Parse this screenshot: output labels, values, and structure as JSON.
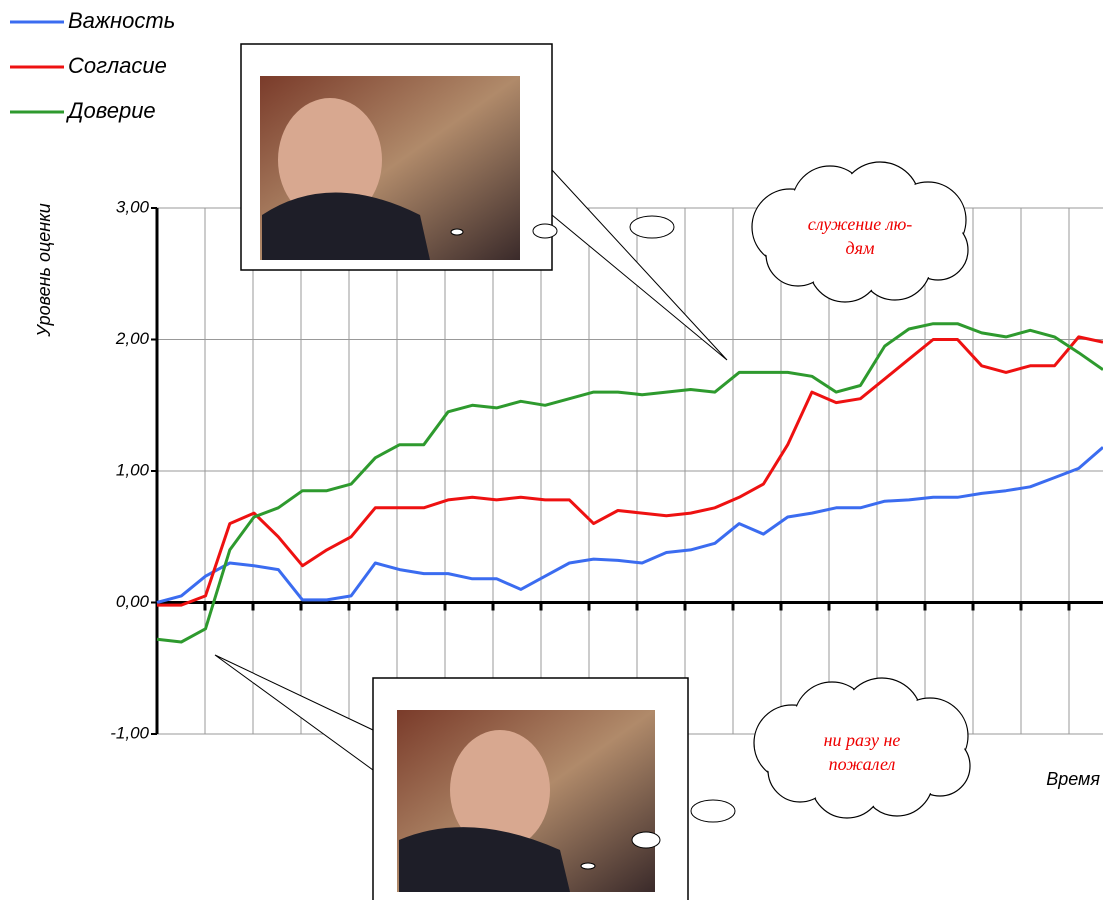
{
  "chart_data": {
    "type": "line",
    "ylabel": "Уровень оценки",
    "xlabel": "Время",
    "ylim": [
      -1,
      3
    ],
    "yticks": [
      {
        "value": -1,
        "label": "-1,00"
      },
      {
        "value": 0,
        "label": "0,00"
      },
      {
        "value": 1,
        "label": "1,00"
      },
      {
        "value": 2,
        "label": "2,00"
      },
      {
        "value": 3,
        "label": "3,00"
      }
    ],
    "grid": true,
    "legend": "top-left",
    "categories": [
      null,
      null,
      null,
      null,
      null,
      null,
      null,
      null,
      null,
      null,
      null,
      null,
      null,
      null,
      null,
      null,
      null,
      null,
      null,
      null,
      null,
      null,
      null,
      null,
      null,
      null,
      null,
      null,
      null,
      null,
      null,
      null,
      null,
      null,
      null,
      null,
      null,
      null,
      null,
      null
    ],
    "series": [
      {
        "name": "Важность",
        "color": "#3b6cf0",
        "values": [
          0.0,
          0.05,
          0.2,
          0.3,
          0.28,
          0.25,
          0.02,
          0.02,
          0.05,
          0.3,
          0.25,
          0.22,
          0.22,
          0.18,
          0.18,
          0.1,
          0.2,
          0.3,
          0.33,
          0.32,
          0.3,
          0.38,
          0.4,
          0.45,
          0.6,
          0.52,
          0.65,
          0.68,
          0.72,
          0.72,
          0.77,
          0.78,
          0.8,
          0.8,
          0.83,
          0.85,
          0.88,
          0.95,
          1.02,
          1.18
        ]
      },
      {
        "name": "Согласие",
        "color": "#ee1111",
        "values": [
          -0.02,
          -0.02,
          0.05,
          0.6,
          0.68,
          0.5,
          0.28,
          0.4,
          0.5,
          0.72,
          0.72,
          0.72,
          0.78,
          0.8,
          0.78,
          0.8,
          0.78,
          0.78,
          0.6,
          0.7,
          0.68,
          0.66,
          0.68,
          0.72,
          0.8,
          0.9,
          1.2,
          1.6,
          1.52,
          1.55,
          1.7,
          1.85,
          2.0,
          2.0,
          1.8,
          1.75,
          1.8,
          1.8,
          2.02,
          1.98
        ]
      },
      {
        "name": "Доверие",
        "color": "#2e9a2e",
        "values": [
          -0.28,
          -0.3,
          -0.2,
          0.4,
          0.65,
          0.72,
          0.85,
          0.85,
          0.9,
          1.1,
          1.2,
          1.2,
          1.45,
          1.5,
          1.48,
          1.53,
          1.5,
          1.55,
          1.6,
          1.6,
          1.58,
          1.6,
          1.62,
          1.6,
          1.75,
          1.75,
          1.75,
          1.72,
          1.6,
          1.65,
          1.95,
          2.08,
          2.12,
          2.12,
          2.05,
          2.02,
          2.07,
          2.02,
          1.9,
          1.77
        ]
      }
    ],
    "annotations": [
      {
        "lines": [
          "служение лю-",
          "дям"
        ]
      },
      {
        "lines": [
          "ни разу не",
          "пожалел"
        ]
      }
    ]
  }
}
